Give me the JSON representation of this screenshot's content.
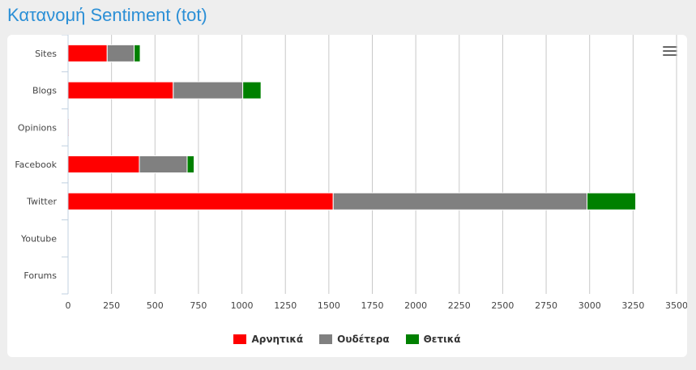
{
  "page": {
    "title": "Κατανομή Sentiment (tot)"
  },
  "colors": {
    "negative": "#ff0000",
    "neutral": "#808080",
    "positive": "#008000"
  },
  "chart_data": {
    "type": "bar",
    "orientation": "horizontal",
    "stacked": true,
    "title": "",
    "categories": [
      "Sites",
      "Blogs",
      "Opinions",
      "Facebook",
      "Twitter",
      "Youtube",
      "Forums"
    ],
    "series": [
      {
        "name": "Αρνητικά",
        "color": "#ff0000",
        "values": [
          225,
          605,
          5,
          410,
          1525,
          0,
          0
        ]
      },
      {
        "name": "Ουδέτερα",
        "color": "#808080",
        "values": [
          155,
          400,
          0,
          275,
          1460,
          0,
          0
        ]
      },
      {
        "name": "Θετικά",
        "color": "#008000",
        "values": [
          35,
          105,
          0,
          40,
          280,
          0,
          0
        ]
      }
    ],
    "xlim": [
      0,
      3500
    ],
    "xticks": [
      "0",
      "250",
      "500",
      "750",
      "1000",
      "1250",
      "1500",
      "1750",
      "2000",
      "2250",
      "2500",
      "2750",
      "3000",
      "3250",
      "3500"
    ],
    "grid": true,
    "legend_position": "bottom-center"
  }
}
